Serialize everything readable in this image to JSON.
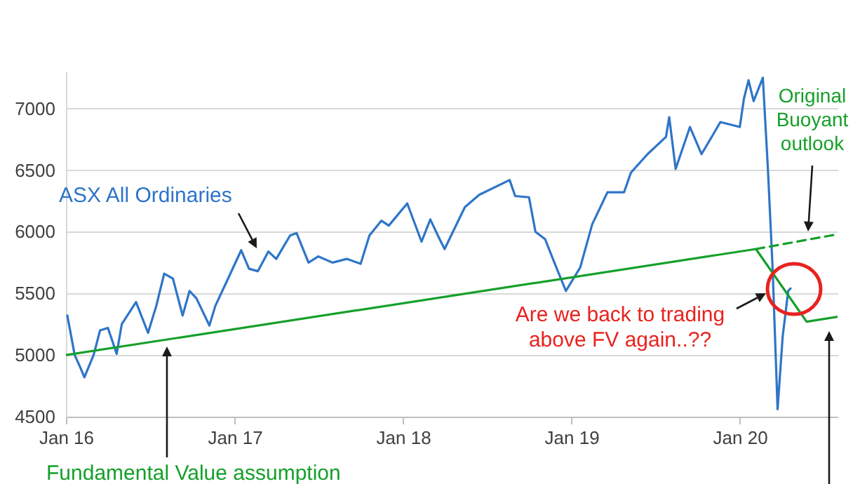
{
  "chart_data": {
    "type": "line",
    "grid": "y",
    "ylim": [
      4500,
      7300
    ],
    "yticks": [
      4500,
      5000,
      5500,
      6000,
      6500,
      7000
    ],
    "xlim": [
      "2016-01-01",
      "2020-07-31"
    ],
    "xticks": [
      {
        "value": "2016-01-01",
        "label": "Jan 16"
      },
      {
        "value": "2017-01-01",
        "label": "Jan 17"
      },
      {
        "value": "2018-01-01",
        "label": "Jan 18"
      },
      {
        "value": "2019-01-01",
        "label": "Jan 19"
      },
      {
        "value": "2020-01-01",
        "label": "Jan 20"
      }
    ],
    "annotations": [
      "Are we back to trading above FV again..??"
    ],
    "series": [
      {
        "name": "ASX All Ordinaries",
        "color": "#2e75c8",
        "x": [
          "2016-01-04",
          "2016-01-20",
          "2016-02-01",
          "2016-02-10",
          "2016-03-01",
          "2016-03-15",
          "2016-04-01",
          "2016-04-20",
          "2016-05-01",
          "2016-06-01",
          "2016-06-27",
          "2016-07-15",
          "2016-08-01",
          "2016-08-20",
          "2016-09-10",
          "2016-09-25",
          "2016-10-10",
          "2016-11-07",
          "2016-11-20",
          "2016-12-15",
          "2017-01-15",
          "2017-02-01",
          "2017-02-20",
          "2017-03-15",
          "2017-04-01",
          "2017-05-01",
          "2017-05-15",
          "2017-06-10",
          "2017-07-01",
          "2017-08-01",
          "2017-09-01",
          "2017-10-01",
          "2017-10-20",
          "2017-11-15",
          "2017-12-01",
          "2018-01-10",
          "2018-02-10",
          "2018-03-01",
          "2018-03-20",
          "2018-04-01",
          "2018-05-15",
          "2018-06-15",
          "2018-08-20",
          "2018-09-01",
          "2018-10-01",
          "2018-10-15",
          "2018-11-05",
          "2018-11-25",
          "2018-12-20",
          "2019-01-20",
          "2019-02-15",
          "2019-03-20",
          "2019-04-25",
          "2019-05-10",
          "2019-06-15",
          "2019-07-25",
          "2019-08-01",
          "2019-08-15",
          "2019-09-15",
          "2019-10-10",
          "2019-11-20",
          "2020-01-01",
          "2020-01-10",
          "2020-01-20",
          "2020-01-31",
          "2020-02-20",
          "2020-03-02",
          "2020-03-12",
          "2020-03-23",
          "2020-04-03",
          "2020-04-15",
          "2020-04-20"
        ],
        "values": [
          5320,
          5000,
          4900,
          4820,
          5000,
          5200,
          5220,
          5010,
          5250,
          5430,
          5180,
          5400,
          5660,
          5620,
          5320,
          5520,
          5460,
          5240,
          5400,
          5600,
          5850,
          5700,
          5680,
          5840,
          5780,
          5970,
          5990,
          5750,
          5800,
          5750,
          5780,
          5740,
          5970,
          6090,
          6050,
          6230,
          5920,
          6100,
          5950,
          5860,
          6200,
          6300,
          6420,
          6290,
          6280,
          6000,
          5940,
          5750,
          5520,
          5710,
          6060,
          6320,
          6320,
          6480,
          6630,
          6770,
          6930,
          6510,
          6850,
          6630,
          6890,
          6850,
          7080,
          7230,
          7060,
          7250,
          6510,
          5720,
          4560,
          5150,
          5520,
          5540
        ]
      },
      {
        "name": "Fundamental Value assumption",
        "color": "#15a02a",
        "x": [
          "2016-01-01",
          "2020-02-05",
          "2020-05-25",
          "2020-07-31"
        ],
        "values": [
          5000,
          5860,
          5270,
          5310
        ]
      },
      {
        "name": "Original Buoyant outlook",
        "color": "#15a02a",
        "line_style": "dashed",
        "x": [
          "2020-02-05",
          "2020-07-31"
        ],
        "values": [
          5860,
          5980
        ]
      }
    ]
  }
}
